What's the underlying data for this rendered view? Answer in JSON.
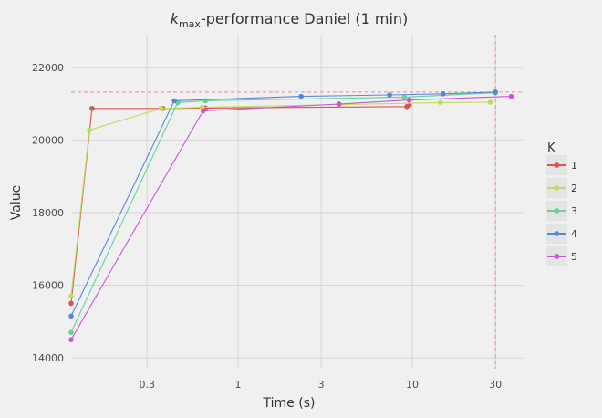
{
  "chart_data": {
    "type": "line",
    "title_prefix": "k",
    "title_subscript": "max",
    "title_suffix": "-performance Daniel (1 min)",
    "xlabel": "Time (s)",
    "ylabel": "Value",
    "x_scale": "log",
    "xlim": [
      0.11,
      43
    ],
    "ylim": [
      13700,
      22900
    ],
    "x_ticks": [
      {
        "value": 0.3,
        "label": "0.3"
      },
      {
        "value": 1,
        "label": "1"
      },
      {
        "value": 3,
        "label": "3"
      },
      {
        "value": 10,
        "label": "10"
      },
      {
        "value": 30,
        "label": "30"
      }
    ],
    "y_ticks": [
      {
        "value": 14000,
        "label": "14000"
      },
      {
        "value": 16000,
        "label": "16000"
      },
      {
        "value": 18000,
        "label": "18000"
      },
      {
        "value": 20000,
        "label": "20000"
      },
      {
        "value": 22000,
        "label": "22000"
      }
    ],
    "reference_hline": 21320,
    "reference_vline": 30,
    "reference_color": "#f08c8c",
    "grid": true,
    "legend_title": "K",
    "legend_position": "right",
    "series": [
      {
        "name": "1",
        "color": "#d9534f",
        "points": [
          [
            0.11,
            15500
          ],
          [
            0.145,
            20870
          ],
          [
            0.37,
            20870
          ],
          [
            0.65,
            20880
          ],
          [
            9.3,
            20920
          ],
          [
            9.6,
            20960
          ]
        ]
      },
      {
        "name": "2",
        "color": "#bfdc5c",
        "points": [
          [
            0.11,
            15700
          ],
          [
            0.14,
            20270
          ],
          [
            0.36,
            20870
          ],
          [
            0.62,
            20900
          ],
          [
            14.5,
            21030
          ],
          [
            28,
            21040
          ]
        ]
      },
      {
        "name": "3",
        "color": "#5fd49b",
        "points": [
          [
            0.11,
            14700
          ],
          [
            0.45,
            21030
          ],
          [
            0.65,
            21080
          ],
          [
            9.0,
            21180
          ],
          [
            30,
            21300
          ]
        ]
      },
      {
        "name": "4",
        "color": "#5a86d8",
        "points": [
          [
            0.11,
            15150
          ],
          [
            0.43,
            21080
          ],
          [
            2.3,
            21200
          ],
          [
            7.4,
            21240
          ],
          [
            15,
            21270
          ],
          [
            30,
            21320
          ]
        ]
      },
      {
        "name": "5",
        "color": "#c855d8",
        "points": [
          [
            0.11,
            14500
          ],
          [
            0.63,
            20800
          ],
          [
            3.8,
            20990
          ],
          [
            9.6,
            21100
          ],
          [
            37,
            21200
          ]
        ]
      }
    ]
  }
}
